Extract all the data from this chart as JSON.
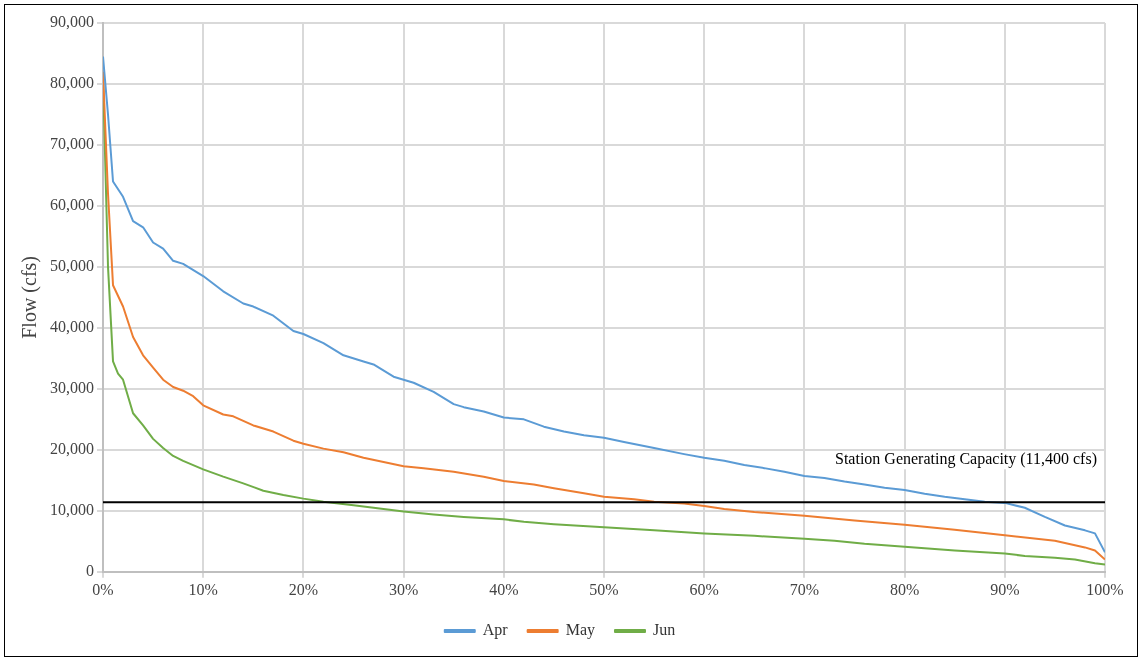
{
  "chart_data": {
    "type": "line",
    "ylabel": "Flow (cfs)",
    "xlim": [
      0,
      100
    ],
    "xticks": [
      {
        "value": 0,
        "label": "0%"
      },
      {
        "value": 10,
        "label": "10%"
      },
      {
        "value": 20,
        "label": "20%"
      },
      {
        "value": 30,
        "label": "30%"
      },
      {
        "value": 40,
        "label": "40%"
      },
      {
        "value": 50,
        "label": "50%"
      },
      {
        "value": 60,
        "label": "60%"
      },
      {
        "value": 70,
        "label": "70%"
      },
      {
        "value": 80,
        "label": "80%"
      },
      {
        "value": 90,
        "label": "90%"
      },
      {
        "value": 100,
        "label": "100%"
      }
    ],
    "ylim": [
      0,
      90000
    ],
    "yticks": [
      {
        "value": 0,
        "label": "0"
      },
      {
        "value": 10000,
        "label": "10,000"
      },
      {
        "value": 20000,
        "label": "20,000"
      },
      {
        "value": 30000,
        "label": "30,000"
      },
      {
        "value": 40000,
        "label": "40,000"
      },
      {
        "value": 50000,
        "label": "50,000"
      },
      {
        "value": 60000,
        "label": "60,000"
      },
      {
        "value": 70000,
        "label": "70,000"
      },
      {
        "value": 80000,
        "label": "80,000"
      },
      {
        "value": 90000,
        "label": "90,000"
      }
    ],
    "grid": true,
    "legend": "bottom",
    "marker": "none",
    "line_style": "solid",
    "series": [
      {
        "name": "Apr",
        "color": "#5b9bd5",
        "x": [
          0,
          0.5,
          1,
          2,
          3,
          4,
          5,
          6,
          7,
          8,
          10,
          12,
          14,
          15,
          17,
          19,
          20,
          22,
          24,
          26,
          27,
          29,
          31,
          33,
          35,
          36,
          38,
          40,
          42,
          44,
          46,
          48,
          50,
          52,
          55,
          58,
          60,
          62,
          64,
          66,
          68,
          70,
          72,
          74,
          76,
          78,
          80,
          82,
          84,
          86,
          88,
          90,
          92,
          94,
          96,
          98,
          99,
          100
        ],
        "values": [
          84500,
          75000,
          64000,
          61500,
          57500,
          56500,
          54000,
          53000,
          51000,
          50500,
          48500,
          46000,
          44000,
          43500,
          42000,
          39500,
          39000,
          37500,
          35500,
          34500,
          34000,
          32000,
          31000,
          29500,
          27500,
          27000,
          26300,
          25300,
          25000,
          23800,
          23000,
          22400,
          22000,
          21300,
          20300,
          19300,
          18700,
          18200,
          17500,
          17000,
          16400,
          15700,
          15400,
          14800,
          14300,
          13800,
          13400,
          12800,
          12300,
          11900,
          11500,
          11300,
          10500,
          9000,
          7600,
          6800,
          6300,
          3200
        ]
      },
      {
        "name": "May",
        "color": "#ed7d31",
        "x": [
          0,
          0.5,
          1,
          2,
          3,
          4,
          5,
          6,
          7,
          8,
          9,
          10,
          12,
          13,
          15,
          17,
          19,
          20,
          22,
          24,
          26,
          28,
          30,
          32,
          35,
          38,
          40,
          43,
          45,
          48,
          50,
          53,
          55,
          58,
          60,
          62,
          65,
          70,
          75,
          80,
          85,
          90,
          95,
          98,
          99,
          100
        ],
        "values": [
          82000,
          62000,
          47000,
          43500,
          38500,
          35500,
          33500,
          31500,
          30300,
          29700,
          28800,
          27300,
          25800,
          25500,
          24000,
          23000,
          21500,
          21000,
          20200,
          19600,
          18700,
          18000,
          17300,
          17000,
          16400,
          15600,
          14900,
          14300,
          13700,
          12900,
          12300,
          11900,
          11500,
          11200,
          10800,
          10300,
          9800,
          9200,
          8400,
          7700,
          6900,
          6000,
          5100,
          4000,
          3500,
          2000
        ]
      },
      {
        "name": "Jun",
        "color": "#70ad47",
        "x": [
          0,
          0.5,
          1,
          1.5,
          2,
          3,
          4,
          5,
          6,
          7,
          8,
          10,
          12,
          14,
          16,
          18,
          20,
          22,
          25,
          28,
          30,
          33,
          36,
          40,
          42,
          45,
          50,
          55,
          60,
          65,
          70,
          73,
          76,
          80,
          85,
          90,
          92,
          95,
          97,
          99,
          100
        ],
        "values": [
          81000,
          50000,
          34500,
          32500,
          31500,
          26000,
          24000,
          21800,
          20300,
          19000,
          18200,
          16800,
          15600,
          14500,
          13300,
          12600,
          12000,
          11500,
          10900,
          10300,
          9900,
          9400,
          9000,
          8600,
          8200,
          7800,
          7300,
          6800,
          6300,
          5900,
          5400,
          5100,
          4600,
          4100,
          3500,
          3000,
          2600,
          2300,
          2000,
          1400,
          1200
        ]
      }
    ],
    "ref_lines": [
      {
        "axis": "y",
        "value": 11400,
        "label": "Station Generating Capacity (11,400 cfs)",
        "color": "#000000",
        "line_style": "solid"
      }
    ]
  }
}
